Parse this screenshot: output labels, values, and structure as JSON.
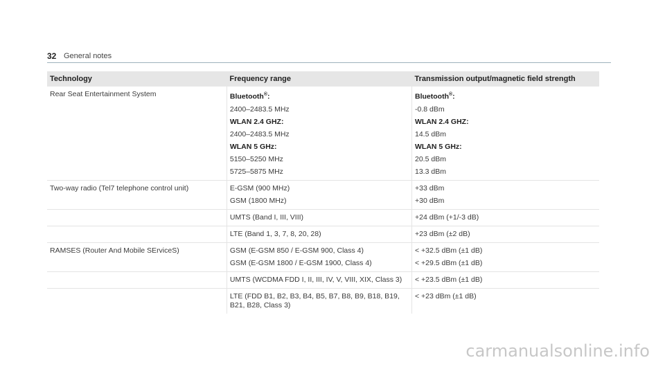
{
  "header": {
    "page_number": "32",
    "section_title": "General notes"
  },
  "table": {
    "columns": [
      "Technology",
      "Frequency range",
      "Transmission output/magnetic field strength"
    ],
    "rows": [
      {
        "tech": "Rear Seat Entertainment System",
        "freq": [
          {
            "text": "Bluetooth",
            "bold": true,
            "sup": "®",
            "suffix": ":"
          },
          {
            "text": "2400–2483.5 MHz"
          },
          {
            "text": "WLAN 2.4 GHZ:",
            "bold": true
          },
          {
            "text": "2400–2483.5 MHz"
          },
          {
            "text": "WLAN 5 GHz:",
            "bold": true
          },
          {
            "text": "5150–5250 MHz"
          },
          {
            "text": "5725–5875 MHz"
          }
        ],
        "power": [
          {
            "text": "Bluetooth",
            "bold": true,
            "sup": "®",
            "suffix": ":"
          },
          {
            "text": "-0.8 dBm"
          },
          {
            "text": "WLAN 2.4 GHZ:",
            "bold": true
          },
          {
            "text": "14.5 dBm"
          },
          {
            "text": "WLAN 5 GHz:",
            "bold": true
          },
          {
            "text": "20.5 dBm"
          },
          {
            "text": "13.3 dBm"
          }
        ]
      },
      {
        "tech": "Two-way radio (Tel7 telephone control unit)",
        "freq": [
          {
            "text": "E-GSM (900 MHz)"
          },
          {
            "text": "GSM (1800 MHz)"
          }
        ],
        "power": [
          {
            "text": "+33 dBm"
          },
          {
            "text": "+30 dBm"
          }
        ]
      },
      {
        "tech": "",
        "freq": [
          {
            "text": "UMTS (Band I, III, VIII)"
          }
        ],
        "power": [
          {
            "text": "+24 dBm (+1/-3 dB)"
          }
        ]
      },
      {
        "tech": "",
        "freq": [
          {
            "text": "LTE (Band 1, 3, 7, 8, 20, 28)"
          }
        ],
        "power": [
          {
            "text": "+23 dBm (±2 dB)"
          }
        ]
      },
      {
        "tech": "RAMSES (Router And Mobile SErviceS)",
        "freq": [
          {
            "text": "GSM (E-GSM 850 / E-GSM 900, Class 4)"
          },
          {
            "text": "GSM (E-GSM 1800 / E-GSM 1900, Class 4)"
          }
        ],
        "power": [
          {
            "text": "< +32.5 dBm (±1 dB)"
          },
          {
            "text": "< +29.5 dBm (±1 dB)"
          }
        ]
      },
      {
        "tech": "",
        "freq": [
          {
            "text": "UMTS (WCDMA FDD I, II, III, IV, V, VIII, XIX, Class 3)"
          }
        ],
        "power": [
          {
            "text": "< +23.5 dBm (±1 dB)"
          }
        ]
      },
      {
        "tech": "",
        "freq": [
          {
            "text": "LTE (FDD B1, B2, B3, B4, B5, B7, B8, B9, B18, B19, B21, B28, Class 3)"
          }
        ],
        "power": [
          {
            "text": "< +23 dBm (±1 dB)"
          }
        ]
      }
    ]
  },
  "watermark": "carmanualsonline.info"
}
